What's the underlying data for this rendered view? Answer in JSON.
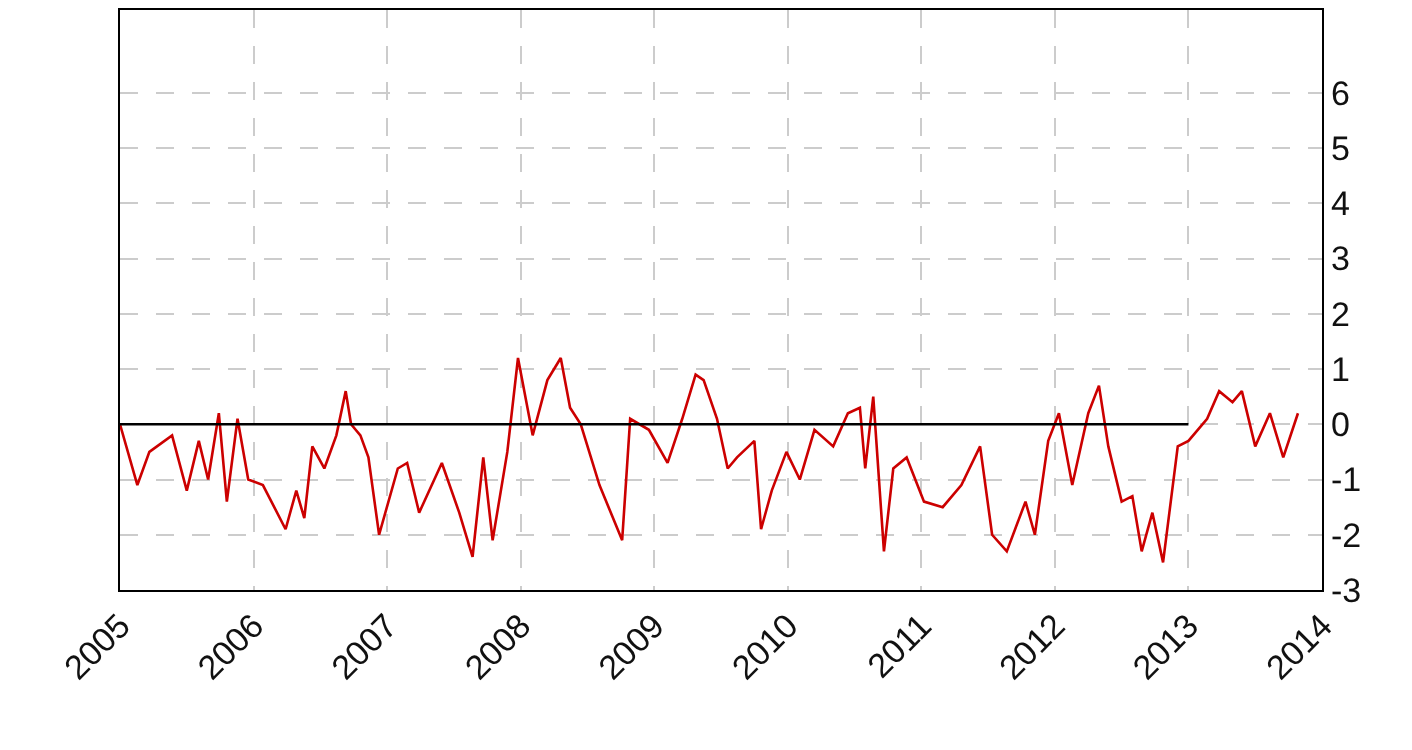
{
  "chart_data": {
    "type": "line",
    "xlim": [
      2005,
      2014
    ],
    "xticks": [
      2005,
      2006,
      2007,
      2008,
      2009,
      2010,
      2011,
      2012,
      2013,
      2014
    ],
    "ylim": [
      -3,
      7.5
    ],
    "yticks": [
      -3,
      -2,
      -1,
      0,
      1,
      2,
      3,
      4,
      5,
      6
    ],
    "grid": true,
    "marker": "none",
    "line_style": "solid",
    "series": [
      {
        "color": "#cc0000",
        "x": [
          2005.0,
          2005.13,
          2005.22,
          2005.39,
          2005.5,
          2005.59,
          2005.66,
          2005.74,
          2005.8,
          2005.88,
          2005.96,
          2006.07,
          2006.24,
          2006.32,
          2006.38,
          2006.44,
          2006.53,
          2006.62,
          2006.69,
          2006.73,
          2006.8,
          2006.86,
          2006.94,
          2007.08,
          2007.15,
          2007.24,
          2007.41,
          2007.54,
          2007.64,
          2007.72,
          2007.79,
          2007.9,
          2007.98,
          2008.09,
          2008.2,
          2008.3,
          2008.37,
          2008.45,
          2008.59,
          2008.76,
          2008.82,
          2008.96,
          2009.1,
          2009.21,
          2009.31,
          2009.37,
          2009.47,
          2009.55,
          2009.62,
          2009.75,
          2009.8,
          2009.88,
          2009.99,
          2010.09,
          2010.2,
          2010.34,
          2010.45,
          2010.54,
          2010.58,
          2010.64,
          2010.72,
          2010.79,
          2010.89,
          2011.02,
          2011.16,
          2011.3,
          2011.44,
          2011.53,
          2011.64,
          2011.78,
          2011.85,
          2011.95,
          2012.03,
          2012.13,
          2012.25,
          2012.33,
          2012.4,
          2012.5,
          2012.58,
          2012.65,
          2012.73,
          2012.81,
          2012.92,
          2013.0,
          2013.14,
          2013.23,
          2013.33,
          2013.4,
          2013.5,
          2013.61,
          2013.71,
          2013.82
        ],
        "values": [
          0.0,
          -1.1,
          -0.5,
          -0.2,
          -1.2,
          -0.3,
          -1.0,
          0.2,
          -1.4,
          0.1,
          -1.0,
          -1.1,
          -1.9,
          -1.2,
          -1.7,
          -0.4,
          -0.8,
          -0.2,
          0.6,
          0.0,
          -0.2,
          -0.6,
          -2.0,
          -0.8,
          -0.7,
          -1.6,
          -0.7,
          -1.6,
          -2.4,
          -0.6,
          -2.1,
          -0.5,
          1.2,
          -0.2,
          0.8,
          1.2,
          0.3,
          0.0,
          -1.1,
          -2.1,
          0.1,
          -0.1,
          -0.7,
          0.1,
          0.9,
          0.8,
          0.1,
          -0.8,
          -0.6,
          -0.3,
          -1.9,
          -1.2,
          -0.5,
          -1.0,
          -0.1,
          -0.4,
          0.2,
          0.3,
          -0.8,
          0.5,
          -2.3,
          -0.8,
          -0.6,
          -1.4,
          -1.5,
          -1.1,
          -0.4,
          -2.0,
          -2.3,
          -1.4,
          -2.0,
          -0.3,
          0.2,
          -1.1,
          0.2,
          0.7,
          -0.4,
          -1.4,
          -1.3,
          -2.3,
          -1.6,
          -2.5,
          -0.4,
          -0.3,
          0.1,
          0.6,
          0.4,
          0.6,
          -0.4,
          0.2,
          -0.6,
          0.2
        ]
      },
      {
        "type": "line",
        "color": "#000000",
        "x": [
          2005.0,
          2013.0
        ],
        "values": [
          0,
          0
        ]
      }
    ]
  }
}
